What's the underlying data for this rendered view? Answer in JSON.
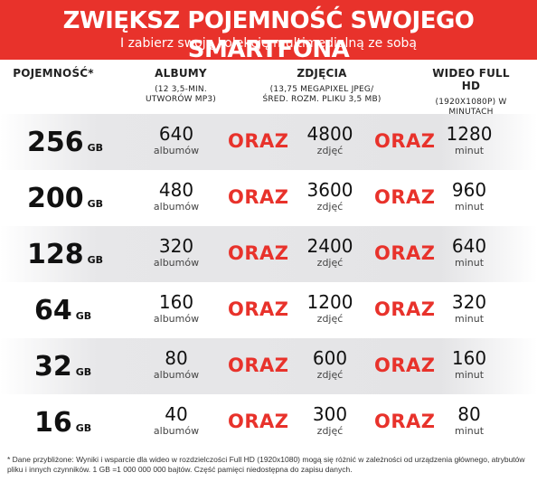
{
  "banner": {
    "title": "ZWIĘKSZ POJEMNOŚĆ SWOJEGO SMARTFONA",
    "subtitle": "I zabierz swoją kolekcję multimedialną ze sobą"
  },
  "headers": {
    "capacity": "POJEMNOŚĆ*",
    "albums": "ALBUMY",
    "albums_sub": "(12 3,5-MIN. UTWORÓW MP3)",
    "photos": "ZDJĘCIA",
    "photos_sub": "(13,75 MEGAPIXEL JPEG/ŚRED. ROZM. PLIKU 3,5 MB)",
    "video": "WIDEO FULL HD",
    "video_sub": "(1920X1080P) W MINUTACH"
  },
  "separator": "ORAZ",
  "units": {
    "capacity": "GB",
    "albums": "albumów",
    "photos": "zdjęć",
    "video": "minut"
  },
  "rows": [
    {
      "capacity": "256",
      "albums": "640",
      "photos": "4800",
      "video": "1280"
    },
    {
      "capacity": "200",
      "albums": "480",
      "photos": "3600",
      "video": "960"
    },
    {
      "capacity": "128",
      "albums": "320",
      "photos": "2400",
      "video": "640"
    },
    {
      "capacity": "64",
      "albums": "160",
      "photos": "1200",
      "video": "320"
    },
    {
      "capacity": "32",
      "albums": "80",
      "photos": "600",
      "video": "160"
    },
    {
      "capacity": "16",
      "albums": "40",
      "photos": "300",
      "video": "80"
    }
  ],
  "footnote": "* Dane przybliżone: Wyniki i wsparcie dla wideo w rozdzielczości Full HD (1920x1080) mogą się różnić w zależności od urządzenia głównego, atrybutów pliku i innych czynników. 1 GB =1 000 000 000 bajtów. Część pamięci niedostępna do zapisu danych.",
  "colors": {
    "brand_red": "#e8322b",
    "row_shade": "#e4e4e6"
  }
}
